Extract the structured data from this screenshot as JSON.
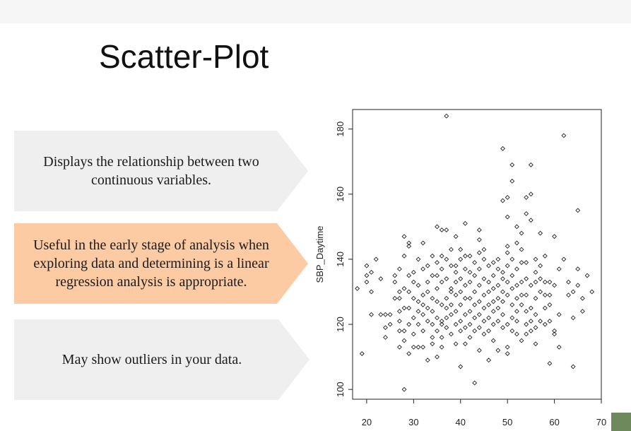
{
  "slide": {
    "title": "Scatter-Plot",
    "cards": [
      {
        "text": "Displays the relationship between two continuous variables.",
        "fill": "#efefef"
      },
      {
        "text": "Useful in the early stage of analysis when exploring data and determining is a linear regression analysis is appropriate.",
        "fill": "#fccba3"
      },
      {
        "text": "May show outliers in your data.",
        "fill": "#efefef"
      }
    ]
  },
  "chart_data": {
    "type": "scatter",
    "title": "",
    "xlabel": "",
    "ylabel": "SBP_Daytime",
    "xlim": [
      17,
      70
    ],
    "ylim": [
      97,
      186
    ],
    "xticks": [
      20,
      30,
      40,
      50,
      60,
      70
    ],
    "yticks": [
      100,
      120,
      140,
      160,
      180
    ],
    "marker": "open-diamond",
    "grid": false,
    "points": [
      [
        18,
        131
      ],
      [
        19,
        111
      ],
      [
        20,
        133
      ],
      [
        20,
        135
      ],
      [
        20,
        138
      ],
      [
        21,
        123
      ],
      [
        21,
        130
      ],
      [
        21,
        136
      ],
      [
        22,
        140
      ],
      [
        23,
        134
      ],
      [
        23,
        123
      ],
      [
        24,
        116
      ],
      [
        24,
        119
      ],
      [
        24,
        123
      ],
      [
        25,
        123
      ],
      [
        25,
        120
      ],
      [
        26,
        128
      ],
      [
        26,
        135
      ],
      [
        26,
        133
      ],
      [
        27,
        137
      ],
      [
        27,
        128
      ],
      [
        27,
        124
      ],
      [
        27,
        118
      ],
      [
        27,
        113
      ],
      [
        27,
        121
      ],
      [
        27,
        130
      ],
      [
        28,
        147
      ],
      [
        28,
        141
      ],
      [
        28,
        125
      ],
      [
        28,
        115
      ],
      [
        28,
        131
      ],
      [
        28,
        118
      ],
      [
        28,
        100
      ],
      [
        29,
        145
      ],
      [
        29,
        144
      ],
      [
        29,
        135
      ],
      [
        29,
        125
      ],
      [
        29,
        120
      ],
      [
        29,
        130
      ],
      [
        29,
        111
      ],
      [
        30,
        136
      ],
      [
        30,
        133
      ],
      [
        30,
        128
      ],
      [
        30,
        122
      ],
      [
        30,
        113
      ],
      [
        30,
        117
      ],
      [
        31,
        132
      ],
      [
        31,
        127
      ],
      [
        31,
        124
      ],
      [
        31,
        120
      ],
      [
        31,
        113
      ],
      [
        31,
        140
      ],
      [
        32,
        129
      ],
      [
        32,
        126
      ],
      [
        32,
        123
      ],
      [
        32,
        137
      ],
      [
        32,
        145
      ],
      [
        32,
        118
      ],
      [
        32,
        113
      ],
      [
        33,
        130
      ],
      [
        33,
        125
      ],
      [
        33,
        121
      ],
      [
        33,
        138
      ],
      [
        33,
        109
      ],
      [
        33,
        133
      ],
      [
        34,
        135
      ],
      [
        34,
        128
      ],
      [
        34,
        124
      ],
      [
        34,
        120
      ],
      [
        34,
        114
      ],
      [
        34,
        116
      ],
      [
        34,
        141
      ],
      [
        35,
        139
      ],
      [
        35,
        131
      ],
      [
        35,
        127
      ],
      [
        35,
        122
      ],
      [
        35,
        118
      ],
      [
        35,
        150
      ],
      [
        35,
        110
      ],
      [
        35,
        135
      ],
      [
        36,
        137
      ],
      [
        36,
        133
      ],
      [
        36,
        126
      ],
      [
        36,
        121
      ],
      [
        36,
        120
      ],
      [
        36,
        149
      ],
      [
        36,
        141
      ],
      [
        36,
        113
      ],
      [
        36,
        116
      ],
      [
        37,
        184
      ],
      [
        37,
        140
      ],
      [
        37,
        134
      ],
      [
        37,
        128
      ],
      [
        37,
        125
      ],
      [
        37,
        119
      ],
      [
        37,
        149
      ],
      [
        37,
        122
      ],
      [
        38,
        138
      ],
      [
        38,
        131
      ],
      [
        38,
        126
      ],
      [
        38,
        123
      ],
      [
        38,
        117
      ],
      [
        38,
        143
      ],
      [
        38,
        130
      ],
      [
        39,
        138
      ],
      [
        39,
        133
      ],
      [
        39,
        129
      ],
      [
        39,
        124
      ],
      [
        39,
        120
      ],
      [
        39,
        147
      ],
      [
        39,
        114
      ],
      [
        39,
        136
      ],
      [
        40,
        140
      ],
      [
        40,
        134
      ],
      [
        40,
        130
      ],
      [
        40,
        126
      ],
      [
        40,
        121
      ],
      [
        40,
        118
      ],
      [
        40,
        107
      ],
      [
        40,
        143
      ],
      [
        41,
        151
      ],
      [
        41,
        137
      ],
      [
        41,
        132
      ],
      [
        41,
        128
      ],
      [
        41,
        123
      ],
      [
        41,
        119
      ],
      [
        41,
        114
      ],
      [
        41,
        141
      ],
      [
        42,
        141
      ],
      [
        42,
        133
      ],
      [
        42,
        128
      ],
      [
        42,
        124
      ],
      [
        42,
        120
      ],
      [
        42,
        116
      ],
      [
        42,
        136
      ],
      [
        43,
        139
      ],
      [
        43,
        135
      ],
      [
        43,
        130
      ],
      [
        43,
        126
      ],
      [
        43,
        122
      ],
      [
        43,
        118
      ],
      [
        43,
        102
      ],
      [
        44,
        149
      ],
      [
        44,
        146
      ],
      [
        44,
        137
      ],
      [
        44,
        132
      ],
      [
        44,
        127
      ],
      [
        44,
        123
      ],
      [
        44,
        119
      ],
      [
        44,
        112
      ],
      [
        44,
        142
      ],
      [
        45,
        140
      ],
      [
        45,
        134
      ],
      [
        45,
        129
      ],
      [
        45,
        125
      ],
      [
        45,
        121
      ],
      [
        45,
        117
      ],
      [
        45,
        143
      ],
      [
        46,
        138
      ],
      [
        46,
        133
      ],
      [
        46,
        130
      ],
      [
        46,
        126
      ],
      [
        46,
        122
      ],
      [
        46,
        118
      ],
      [
        46,
        109
      ],
      [
        47,
        139
      ],
      [
        47,
        135
      ],
      [
        47,
        131
      ],
      [
        47,
        127
      ],
      [
        47,
        124
      ],
      [
        47,
        120
      ],
      [
        47,
        115
      ],
      [
        48,
        137
      ],
      [
        48,
        132
      ],
      [
        48,
        128
      ],
      [
        48,
        125
      ],
      [
        48,
        121
      ],
      [
        48,
        112
      ],
      [
        48,
        140
      ],
      [
        49,
        174
      ],
      [
        49,
        158
      ],
      [
        49,
        136
      ],
      [
        49,
        130
      ],
      [
        49,
        127
      ],
      [
        49,
        123
      ],
      [
        49,
        119
      ],
      [
        49,
        134
      ],
      [
        50,
        159
      ],
      [
        50,
        153
      ],
      [
        50,
        144
      ],
      [
        50,
        138
      ],
      [
        50,
        133
      ],
      [
        50,
        129
      ],
      [
        50,
        120
      ],
      [
        50,
        113
      ],
      [
        50,
        111
      ],
      [
        50,
        142
      ],
      [
        51,
        169
      ],
      [
        51,
        164
      ],
      [
        51,
        140
      ],
      [
        51,
        135
      ],
      [
        51,
        131
      ],
      [
        51,
        126
      ],
      [
        51,
        122
      ],
      [
        51,
        118
      ],
      [
        52,
        150
      ],
      [
        52,
        145
      ],
      [
        52,
        137
      ],
      [
        52,
        132
      ],
      [
        52,
        128
      ],
      [
        52,
        124
      ],
      [
        52,
        121
      ],
      [
        52,
        117
      ],
      [
        53,
        143
      ],
      [
        53,
        139
      ],
      [
        53,
        133
      ],
      [
        53,
        129
      ],
      [
        53,
        126
      ],
      [
        53,
        115
      ],
      [
        53,
        148
      ],
      [
        54,
        159
      ],
      [
        54,
        154
      ],
      [
        54,
        139
      ],
      [
        54,
        134
      ],
      [
        54,
        129
      ],
      [
        54,
        124
      ],
      [
        54,
        120
      ],
      [
        54,
        117
      ],
      [
        55,
        169
      ],
      [
        55,
        160
      ],
      [
        55,
        152
      ],
      [
        55,
        132
      ],
      [
        55,
        125
      ],
      [
        55,
        121
      ],
      [
        55,
        118
      ],
      [
        56,
        140
      ],
      [
        56,
        136
      ],
      [
        56,
        133
      ],
      [
        56,
        128
      ],
      [
        56,
        123
      ],
      [
        56,
        119
      ],
      [
        56,
        114
      ],
      [
        57,
        148
      ],
      [
        57,
        138
      ],
      [
        57,
        134
      ],
      [
        57,
        130
      ],
      [
        57,
        121
      ],
      [
        58,
        141
      ],
      [
        58,
        133
      ],
      [
        58,
        129
      ],
      [
        58,
        125
      ],
      [
        58,
        120
      ],
      [
        59,
        133
      ],
      [
        59,
        129
      ],
      [
        59,
        126
      ],
      [
        59,
        121
      ],
      [
        59,
        108
      ],
      [
        60,
        147
      ],
      [
        60,
        132
      ],
      [
        60,
        118
      ],
      [
        60,
        117
      ],
      [
        61,
        137
      ],
      [
        61,
        123
      ],
      [
        61,
        113
      ],
      [
        62,
        178
      ],
      [
        62,
        140
      ],
      [
        63,
        133
      ],
      [
        63,
        129
      ],
      [
        64,
        107
      ],
      [
        64,
        122
      ],
      [
        64,
        130
      ],
      [
        65,
        155
      ],
      [
        65,
        137
      ],
      [
        65,
        132
      ],
      [
        66,
        124
      ],
      [
        66,
        128
      ],
      [
        67,
        135
      ],
      [
        68,
        130
      ]
    ]
  }
}
